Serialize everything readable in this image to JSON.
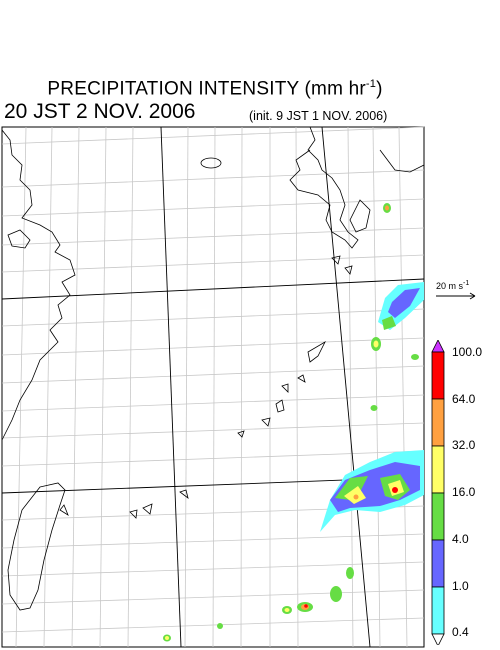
{
  "header": {
    "title": "PRECIPITATION INTENSITY (mm hr",
    "title_exp": "-1",
    "title_end": ")",
    "valid_time": "20 JST 2 NOV. 2006",
    "init_time": "(init. 9 JST 1 NOV. 2006)"
  },
  "wind_reference": {
    "label": "20 m s",
    "label_exp": "-1"
  },
  "legend": {
    "levels": [
      "100.0",
      "64.0",
      "32.0",
      "16.0",
      "4.0",
      "1.0",
      "0.4"
    ],
    "colors": [
      "#ff0000",
      "#ffa040",
      "#ffff66",
      "#66dd44",
      "#6666ff",
      "#66ffff"
    ],
    "over_color": "#cc33ff",
    "under_color": "#ffffff"
  },
  "map": {
    "land_color": "#ffffff",
    "coast_color": "#000000",
    "grid_color": "#bbbbbb"
  }
}
